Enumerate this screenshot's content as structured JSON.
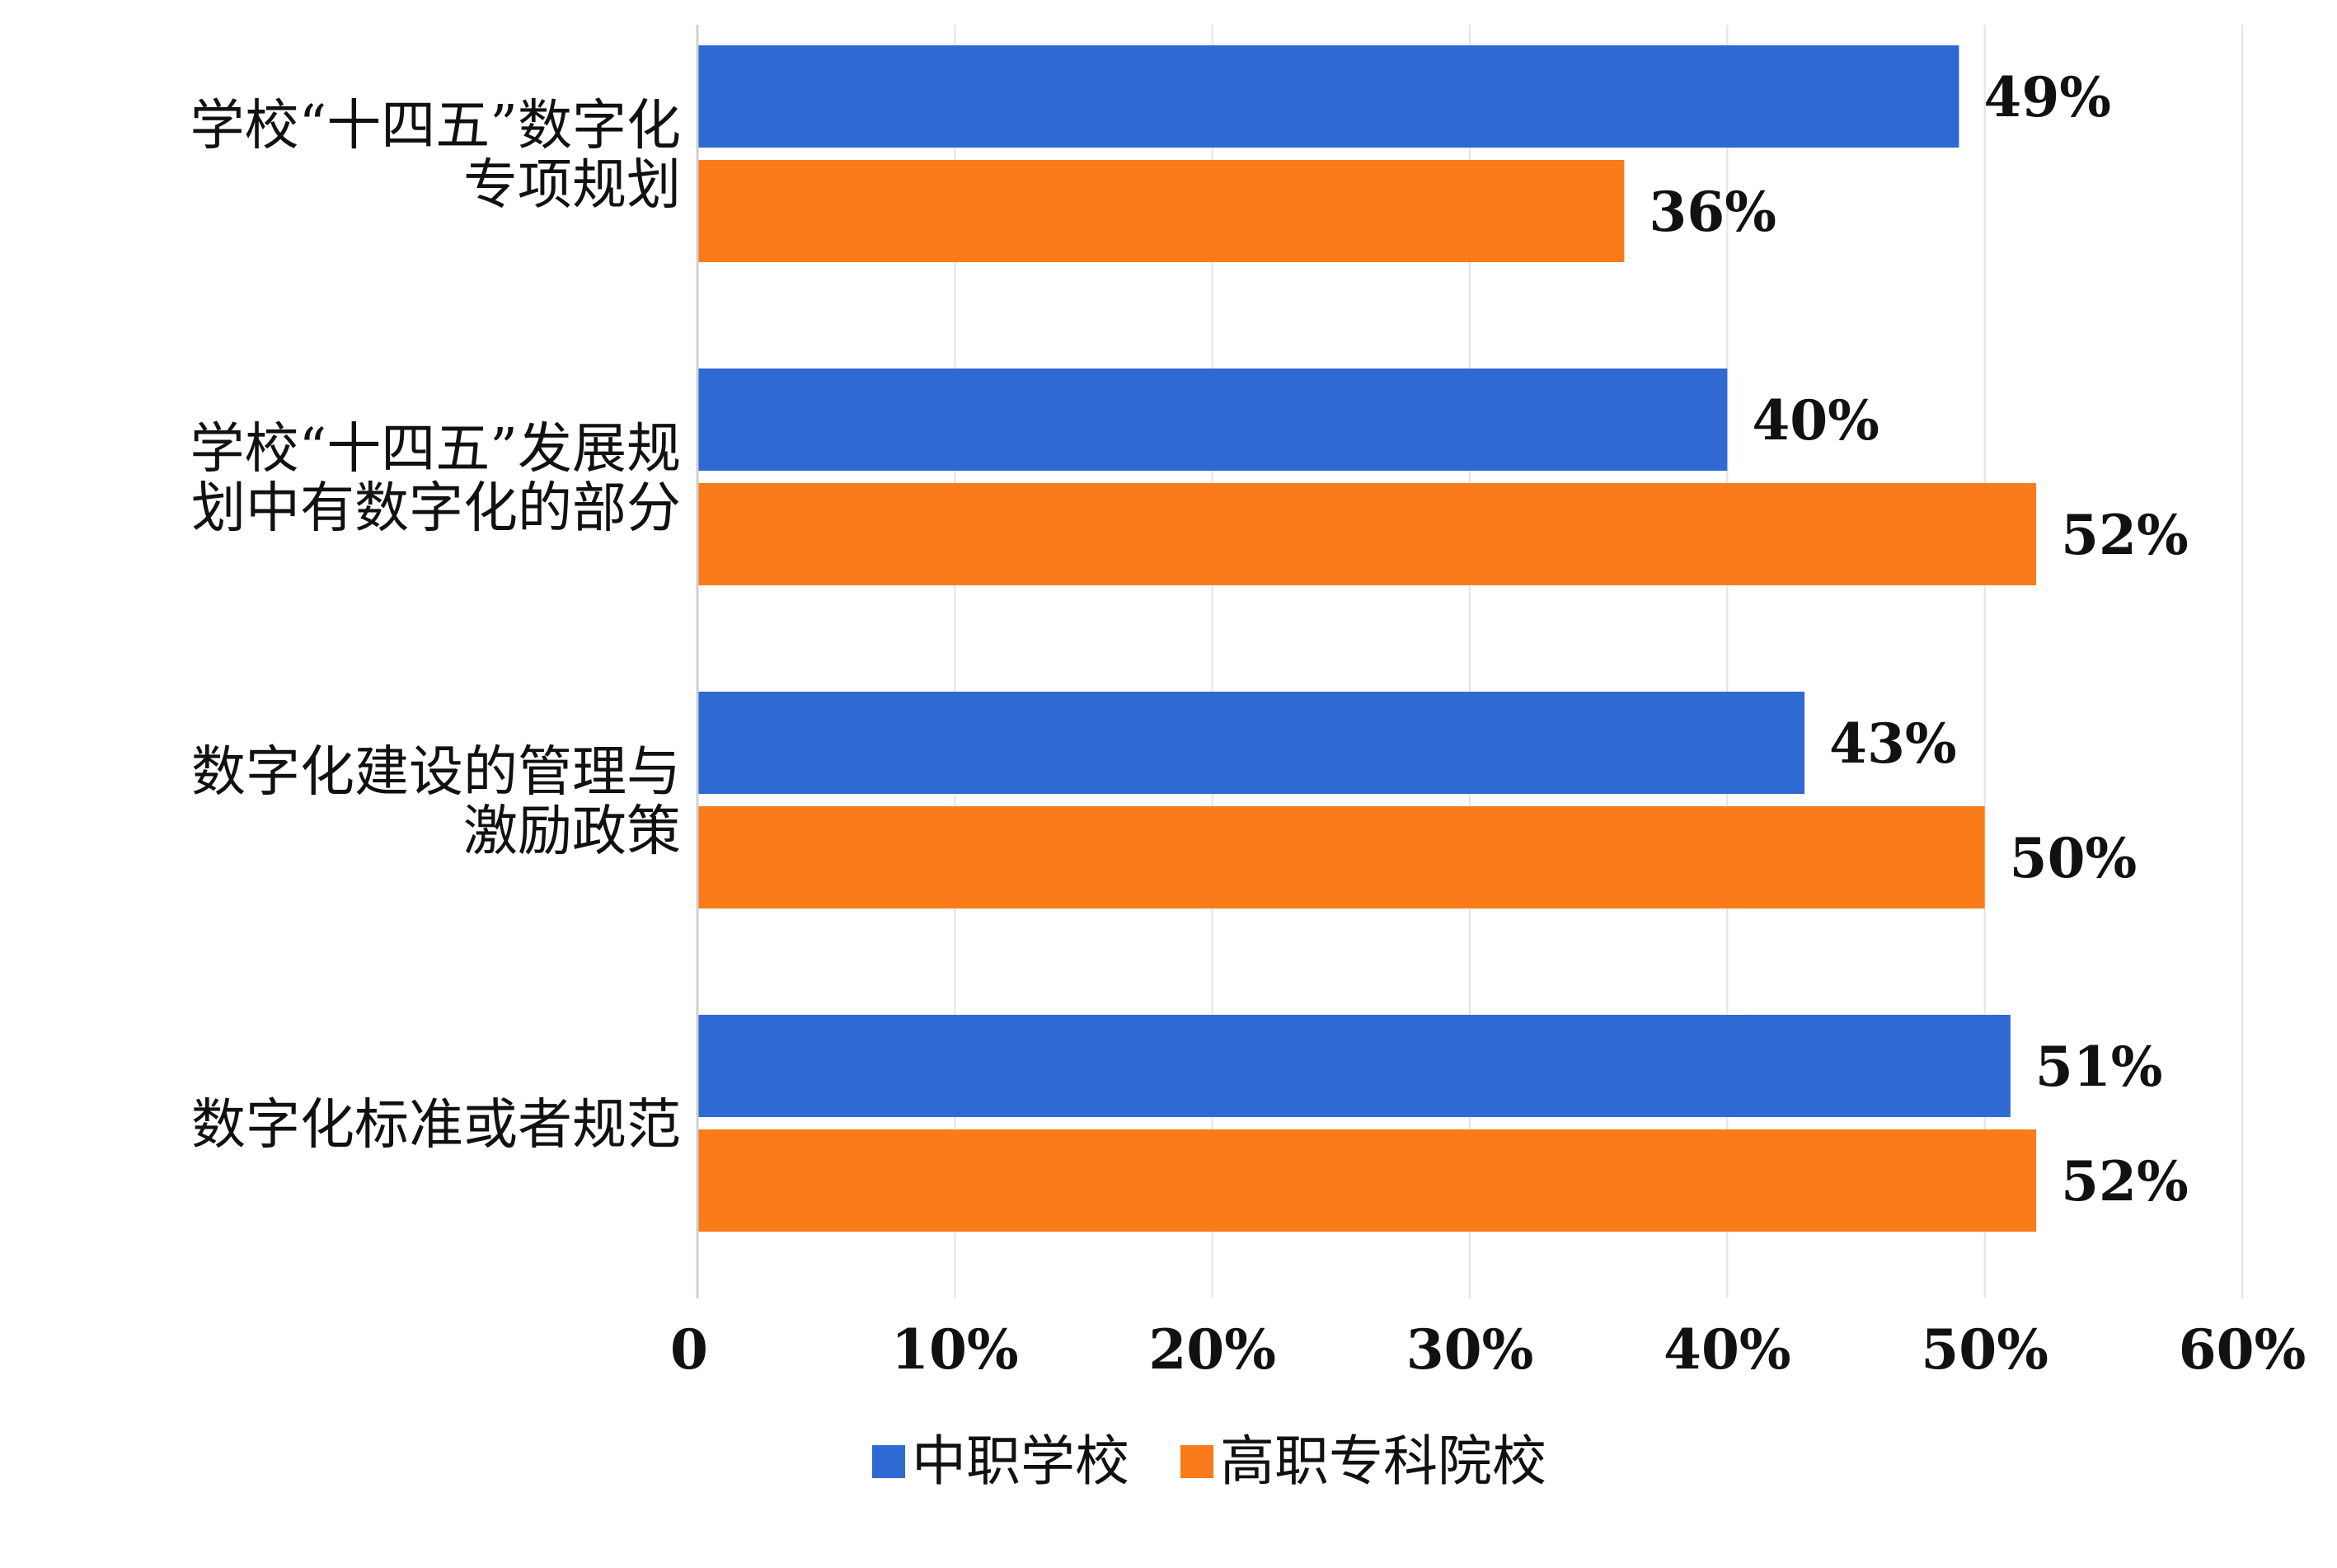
{
  "chart_data": {
    "type": "bar",
    "orientation": "horizontal",
    "categories": [
      [
        "学校“十四五”数字化",
        "专项规划"
      ],
      [
        "学校“十四五”发展规",
        "划中有数字化的部分"
      ],
      [
        "数字化建设的管理与",
        "激励政策"
      ],
      [
        "数字化标准或者规范"
      ]
    ],
    "series": [
      {
        "name": "中职学校",
        "color": "#2f69d2",
        "values": [
          49,
          40,
          43,
          51
        ],
        "labels": [
          "49%",
          "40%",
          "43%",
          "51%"
        ]
      },
      {
        "name": "高职专科院校",
        "color": "#f97b1a",
        "values": [
          36,
          52,
          50,
          52
        ],
        "labels": [
          "36%",
          "52%",
          "50%",
          "52%"
        ]
      }
    ],
    "xlim": [
      0,
      60
    ],
    "xticks": [
      0,
      10,
      20,
      30,
      40,
      50,
      60
    ],
    "xtick_labels": [
      "0",
      "10%",
      "20%",
      "30%",
      "40%",
      "50%",
      "60%"
    ],
    "grid": true,
    "legend_position": "bottom"
  }
}
